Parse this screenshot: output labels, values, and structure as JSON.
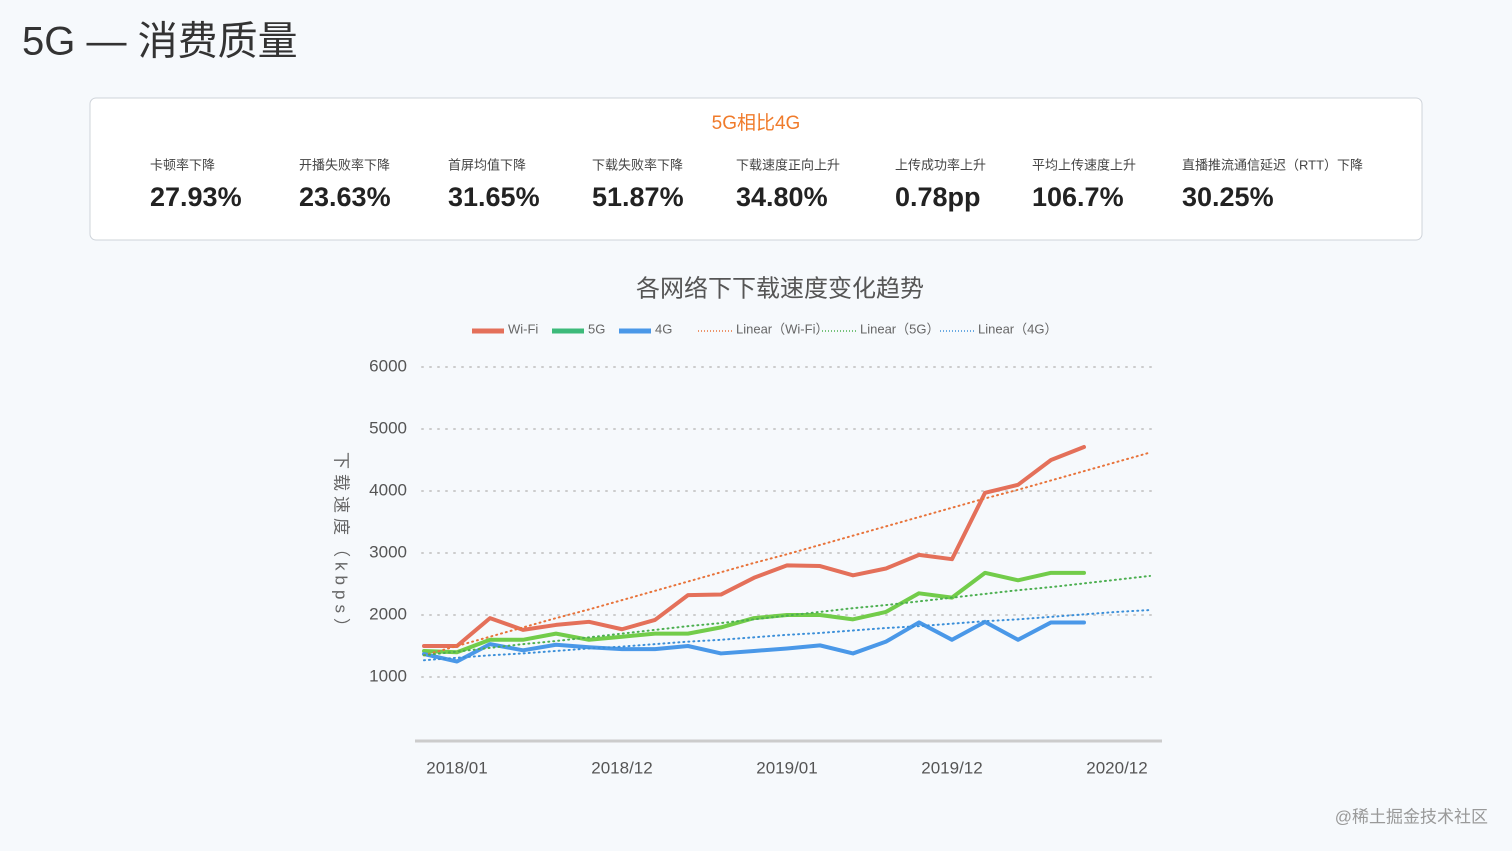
{
  "header": {
    "title": "5G — 消费质量"
  },
  "summary": {
    "title": "5G相比4G",
    "items": [
      {
        "label": "卡顿率下降",
        "value": "27.93%"
      },
      {
        "label": "开播失败率下降",
        "value": "23.63%"
      },
      {
        "label": "首屏均值下降",
        "value": "31.65%"
      },
      {
        "label": "下载失败率下降",
        "value": "51.87%"
      },
      {
        "label": "下载速度正向上升",
        "value": "34.80%"
      },
      {
        "label": "上传成功率上升",
        "value": "0.78pp"
      },
      {
        "label": "平均上传速度上升",
        "value": "106.7%"
      },
      {
        "label": "直播推流通信延迟（RTT）下降",
        "value": "30.25%"
      }
    ]
  },
  "chart_data": {
    "type": "line",
    "title": "各网络下下载速度变化趋势",
    "y_label": "下载速度（kbps）",
    "categories": [
      null,
      "2018/01",
      null,
      null,
      null,
      null,
      "2018/12",
      null,
      null,
      null,
      null,
      "2019/01",
      null,
      null,
      null,
      null,
      "2019/12",
      null,
      null,
      null,
      null,
      "2020/12",
      null
    ],
    "series": [
      {
        "name": "Wi-Fi",
        "color": "#e4705a",
        "linestyle": "solid",
        "values": [
          1500,
          1500,
          1950,
          1760,
          1840,
          1890,
          1770,
          1920,
          2320,
          2330,
          2600,
          2800,
          2790,
          2640,
          2750,
          2970,
          2900,
          3970,
          4100,
          4500,
          4710,
          null,
          null
        ]
      },
      {
        "name": "5G",
        "color": "#72cc4a",
        "legend_color": "#3dba7a",
        "linestyle": "solid",
        "values": [
          1420,
          1400,
          1600,
          1600,
          1700,
          1600,
          1650,
          1700,
          1700,
          1800,
          1950,
          2000,
          2000,
          1930,
          2050,
          2350,
          2280,
          2680,
          2560,
          2680,
          2680,
          null,
          null
        ]
      },
      {
        "name": "4G",
        "color": "#4a98e8",
        "linestyle": "solid",
        "values": [
          1370,
          1250,
          1530,
          1430,
          1520,
          1480,
          1450,
          1450,
          1500,
          1380,
          1420,
          1460,
          1510,
          1380,
          1570,
          1880,
          1600,
          1890,
          1600,
          1880,
          1880,
          null,
          null
        ]
      },
      {
        "name": "Linear（Wi-Fi）",
        "color": "#e8733a",
        "linestyle": "dotted",
        "values": [
          1350,
          1500,
          1650,
          1800,
          1950,
          2090,
          2240,
          2390,
          2540,
          2690,
          2840,
          2980,
          3130,
          3280,
          3430,
          3580,
          3730,
          3880,
          4020,
          4170,
          4320,
          4470,
          4620
        ]
      },
      {
        "name": "Linear（5G）",
        "color": "#4caf50",
        "linestyle": "dotted",
        "values": [
          1350,
          1410,
          1470,
          1530,
          1580,
          1640,
          1700,
          1760,
          1820,
          1870,
          1930,
          1990,
          2050,
          2110,
          2160,
          2220,
          2280,
          2340,
          2400,
          2450,
          2510,
          2570,
          2630
        ]
      },
      {
        "name": "Linear（4G）",
        "color": "#3b8fd9",
        "linestyle": "dotted",
        "values": [
          1270,
          1310,
          1350,
          1380,
          1420,
          1460,
          1490,
          1530,
          1570,
          1600,
          1640,
          1680,
          1710,
          1750,
          1790,
          1820,
          1860,
          1900,
          1930,
          1970,
          2010,
          2050,
          2080
        ]
      }
    ],
    "ylim": [
      0,
      6000
    ],
    "yticks": [
      1000,
      2000,
      3000,
      4000,
      5000,
      6000
    ],
    "grid": true,
    "legend": "top"
  },
  "watermark": "@稀土掘金技术社区"
}
